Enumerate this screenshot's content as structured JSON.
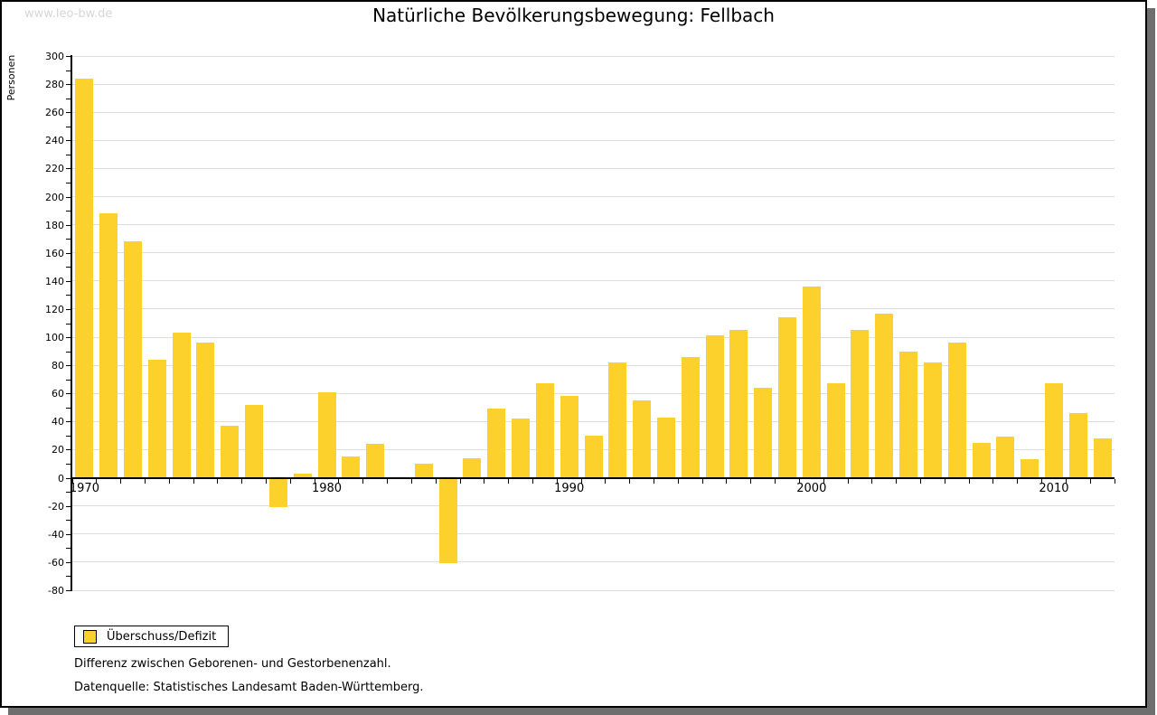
{
  "watermark": "www.leo-bw.de",
  "chart_data": {
    "type": "bar",
    "title": "Natürliche Bevölkerungsbewegung: Fellbach",
    "ylabel": "Personen",
    "xlabel": "",
    "legend_label": "Überschuss/Defizit",
    "legend_position": "bottom-left",
    "grid": true,
    "ylim": [
      -80,
      300
    ],
    "ytick_label_step": 20,
    "ytick_minor_step": 10,
    "bar_color": "#FCD12B",
    "categories": [
      1970,
      1971,
      1972,
      1973,
      1974,
      1975,
      1976,
      1977,
      1978,
      1979,
      1980,
      1981,
      1982,
      1983,
      1984,
      1985,
      1986,
      1987,
      1988,
      1989,
      1990,
      1991,
      1992,
      1993,
      1994,
      1995,
      1996,
      1997,
      1998,
      1999,
      2000,
      2001,
      2002,
      2003,
      2004,
      2005,
      2006,
      2007,
      2008,
      2009,
      2010,
      2011,
      2012
    ],
    "values": [
      284,
      188,
      168,
      84,
      103,
      96,
      37,
      52,
      -21,
      3,
      61,
      15,
      24,
      0,
      10,
      -61,
      14,
      49,
      42,
      67,
      58,
      30,
      82,
      55,
      43,
      86,
      101,
      105,
      64,
      114,
      136,
      67,
      105,
      117,
      90,
      82,
      96,
      25,
      29,
      13,
      67,
      46,
      28
    ],
    "x_labeled_years": [
      1970,
      1980,
      1990,
      2000,
      2010
    ]
  },
  "footnotes": [
    "Differenz zwischen Geborenen- und Gestorbenenzahl.",
    "Datenquelle: Statistisches Landesamt Baden-Württemberg."
  ],
  "colors": {
    "bar": "#FCD12B",
    "gridline": "#DDDDDD",
    "axis": "#000000",
    "shadow": "#6E6E6E",
    "watermark_text": "#D6D6D6"
  }
}
